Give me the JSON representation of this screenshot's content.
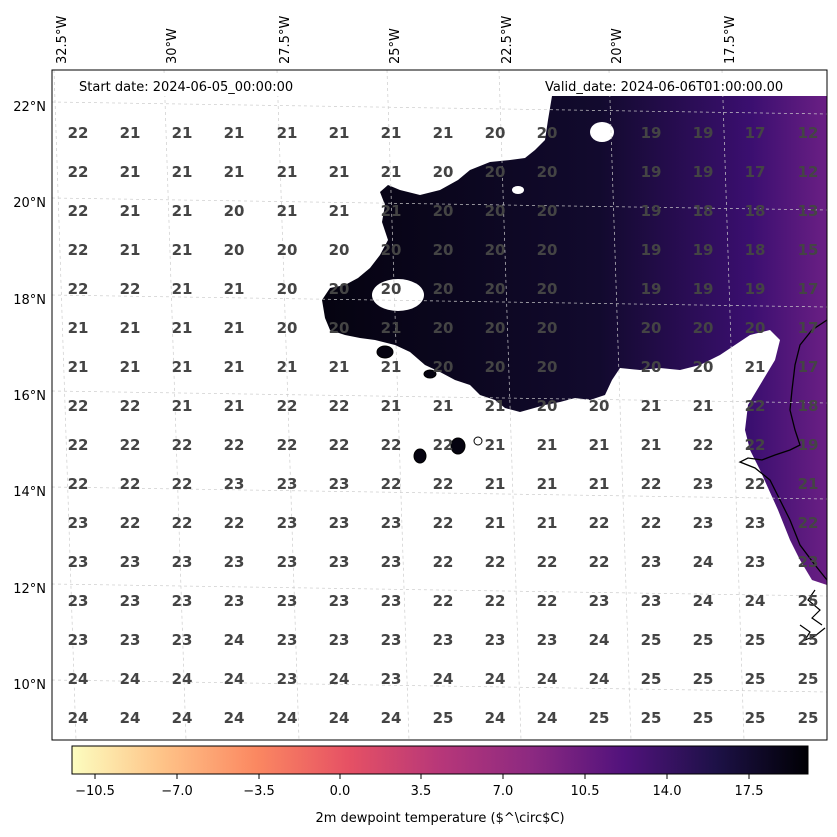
{
  "header": {
    "start_date": "Start date: 2024-06-05_00:00:00",
    "valid_date": "Valid_date: 2024-06-06T01:00:00.00"
  },
  "map": {
    "longitude_labels": [
      "32.5°W",
      "30°W",
      "27.5°W",
      "25°W",
      "22.5°W",
      "20°W",
      "17.5°W"
    ],
    "latitude_labels": [
      "22°N",
      "20°N",
      "18°N",
      "16°N",
      "14°N",
      "12°N",
      "10°N"
    ],
    "grid_values": [
      [
        "22",
        "21",
        "21",
        "21",
        "21",
        "21",
        "21",
        "21",
        "20",
        "20",
        "19",
        "19",
        "17",
        "12"
      ],
      [
        "22",
        "21",
        "21",
        "21",
        "21",
        "21",
        "21",
        "20",
        "20",
        "20",
        "19",
        "19",
        "17",
        "12"
      ],
      [
        "22",
        "21",
        "21",
        "20",
        "21",
        "21",
        "21",
        "20",
        "20",
        "20",
        "19",
        "18",
        "18",
        "13"
      ],
      [
        "22",
        "21",
        "21",
        "20",
        "20",
        "20",
        "20",
        "20",
        "20",
        "20",
        "19",
        "19",
        "18",
        "15"
      ],
      [
        "22",
        "22",
        "21",
        "21",
        "20",
        "20",
        "20",
        "20",
        "20",
        "20",
        "19",
        "19",
        "19",
        "17"
      ],
      [
        "21",
        "21",
        "21",
        "21",
        "20",
        "20",
        "21",
        "20",
        "20",
        "20",
        "20",
        "20",
        "20",
        "17"
      ],
      [
        "21",
        "21",
        "21",
        "21",
        "21",
        "21",
        "21",
        "20",
        "20",
        "20",
        "20",
        "20",
        "21",
        "17"
      ],
      [
        "22",
        "22",
        "21",
        "21",
        "22",
        "22",
        "21",
        "21",
        "21",
        "20",
        "20",
        "21",
        "21",
        "22",
        "18"
      ],
      [
        "22",
        "22",
        "22",
        "22",
        "22",
        "22",
        "22",
        "22",
        "21",
        "21",
        "21",
        "21",
        "22",
        "22",
        "19"
      ],
      [
        "22",
        "22",
        "22",
        "23",
        "23",
        "23",
        "22",
        "22",
        "21",
        "21",
        "21",
        "22",
        "23",
        "22",
        "21"
      ],
      [
        "23",
        "22",
        "22",
        "22",
        "23",
        "23",
        "23",
        "22",
        "21",
        "21",
        "22",
        "22",
        "23",
        "23",
        "22"
      ],
      [
        "23",
        "23",
        "23",
        "23",
        "23",
        "23",
        "23",
        "22",
        "22",
        "22",
        "22",
        "23",
        "24",
        "23",
        "23"
      ],
      [
        "23",
        "23",
        "23",
        "23",
        "23",
        "23",
        "23",
        "22",
        "22",
        "22",
        "23",
        "23",
        "24",
        "24",
        "25"
      ],
      [
        "23",
        "23",
        "23",
        "24",
        "23",
        "23",
        "23",
        "23",
        "23",
        "23",
        "24",
        "25",
        "25",
        "25",
        "25"
      ],
      [
        "24",
        "24",
        "24",
        "24",
        "23",
        "24",
        "23",
        "24",
        "24",
        "24",
        "24",
        "25",
        "25",
        "25",
        "25"
      ],
      [
        "24",
        "24",
        "24",
        "24",
        "24",
        "24",
        "24",
        "25",
        "24",
        "24",
        "25",
        "25",
        "25",
        "25",
        "25"
      ]
    ]
  },
  "colorbar": {
    "label": "2m dewpoint temperature ($^\\circ$C)",
    "ticks": [
      "−10.5",
      "−7.0",
      "−3.5",
      "0.0",
      "3.5",
      "7.0",
      "10.5",
      "14.0",
      "17.5"
    ],
    "colormap": [
      "#fcfdbf",
      "#fec287",
      "#fb8861",
      "#e65164",
      "#b73779",
      "#8c2981",
      "#51127c",
      "#1d1147",
      "#000004"
    ]
  }
}
